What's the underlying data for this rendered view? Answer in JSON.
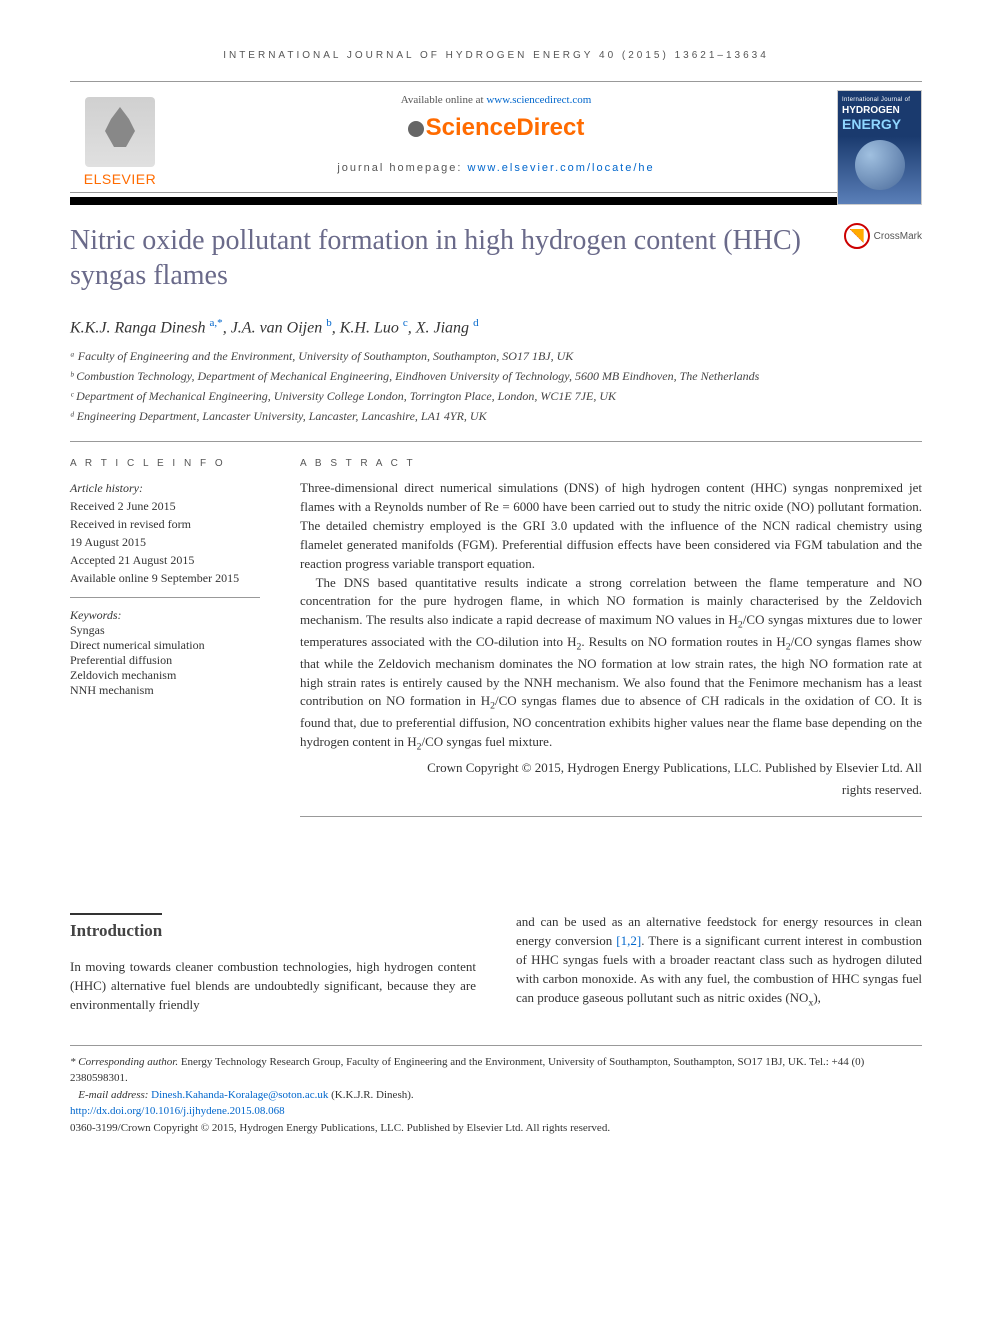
{
  "journal_header": "INTERNATIONAL JOURNAL OF HYDROGEN ENERGY 40 (2015) 13621–13634",
  "available_prefix": "Available online at ",
  "available_link": "www.sciencedirect.com",
  "sd_logo_text": "ScienceDirect",
  "homepage_prefix": "journal homepage: ",
  "homepage_link": "www.elsevier.com/locate/he",
  "elsevier_text": "ELSEVIER",
  "cover": {
    "line1": "International Journal of",
    "line2": "HYDROGEN",
    "line3": "ENERGY"
  },
  "crossmark_label": "CrossMark",
  "title": "Nitric oxide pollutant formation in high hydrogen content (HHC) syngas flames",
  "authors_html": "K.K.J. Ranga Dinesh <sup class='sup-a'>a,*</sup>, J.A. van Oijen <sup class='sup-a'>b</sup>, K.H. Luo <sup class='sup-a'>c</sup>, X. Jiang <sup class='sup-a'>d</sup>",
  "affiliations": [
    "ᵃ Faculty of Engineering and the Environment, University of Southampton, Southampton, SO17 1BJ, UK",
    "ᵇ Combustion Technology, Department of Mechanical Engineering, Eindhoven University of Technology, 5600 MB Eindhoven, The Netherlands",
    "ᶜ Department of Mechanical Engineering, University College London, Torrington Place, London, WC1E 7JE, UK",
    "ᵈ Engineering Department, Lancaster University, Lancaster, Lancashire, LA1 4YR, UK"
  ],
  "info_label": "A R T I C L E   I N F O",
  "abstract_label": "A B S T R A C T",
  "history_heading": "Article history:",
  "history": [
    "Received 2 June 2015",
    "Received in revised form",
    "19 August 2015",
    "Accepted 21 August 2015",
    "Available online 9 September 2015"
  ],
  "keywords_heading": "Keywords:",
  "keywords": [
    "Syngas",
    "Direct numerical simulation",
    "Preferential diffusion",
    "Zeldovich mechanism",
    "NNH mechanism"
  ],
  "abstract_p1": "Three-dimensional direct numerical simulations (DNS) of high hydrogen content (HHC) syngas nonpremixed jet flames with a Reynolds number of Re = 6000 have been carried out to study the nitric oxide (NO) pollutant formation. The detailed chemistry employed is the GRI 3.0 updated with the influence of the NCN radical chemistry using flamelet generated manifolds (FGM). Preferential diffusion effects have been considered via FGM tabulation and the reaction progress variable transport equation.",
  "abstract_p2_html": "The DNS based quantitative results indicate a strong correlation between the flame temperature and NO concentration for the pure hydrogen flame, in which NO formation is mainly characterised by the Zeldovich mechanism. The results also indicate a rapid decrease of maximum NO values in H<sub>2</sub>/CO syngas mixtures due to lower temperatures associated with the CO-dilution into H<sub>2</sub>. Results on NO formation routes in H<sub>2</sub>/CO syngas flames show that while the Zeldovich mechanism dominates the NO formation at low strain rates, the high NO formation rate at high strain rates is entirely caused by the NNH mechanism. We also found that the Fenimore mechanism has a least contribution on NO formation in H<sub>2</sub>/CO syngas flames due to absence of CH radicals in the oxidation of CO. It is found that, due to preferential diffusion, NO concentration exhibits higher values near the flame base depending on the hydrogen content in H<sub>2</sub>/CO syngas fuel mixture.",
  "abstract_copyright1": "Crown Copyright © 2015, Hydrogen Energy Publications, LLC. Published by Elsevier Ltd. All",
  "abstract_copyright2": "rights reserved.",
  "intro_heading": "Introduction",
  "intro_col1": "In moving towards cleaner combustion technologies, high hydrogen content (HHC) alternative fuel blends are undoubtedly significant, because they are environmentally friendly",
  "intro_col2_pre": "and can be used as an alternative feedstock for energy resources in clean energy conversion ",
  "intro_col2_ref": "[1,2]",
  "intro_col2_post_html": ". There is a significant current interest in combustion of HHC syngas fuels with a broader reactant class such as hydrogen diluted with carbon monoxide. As with any fuel, the combustion of HHC syngas fuel can produce gaseous pollutant such as nitric oxides (NO<sub>x</sub>),",
  "footnotes": {
    "corr_label": "* Corresponding author.",
    "corr_text": " Energy Technology Research Group, Faculty of Engineering and the Environment, University of Southampton, Southampton, SO17 1BJ, UK. Tel.: +44 (0) 2380598301.",
    "email_label": "E-mail address: ",
    "email_link": "Dinesh.Kahanda-Koralage@soton.ac.uk",
    "email_suffix": " (K.K.J.R. Dinesh).",
    "doi_link": "http://dx.doi.org/10.1016/j.ijhydene.2015.08.068",
    "issn_line": "0360-3199/Crown Copyright © 2015, Hydrogen Energy Publications, LLC. Published by Elsevier Ltd. All rights reserved."
  }
}
